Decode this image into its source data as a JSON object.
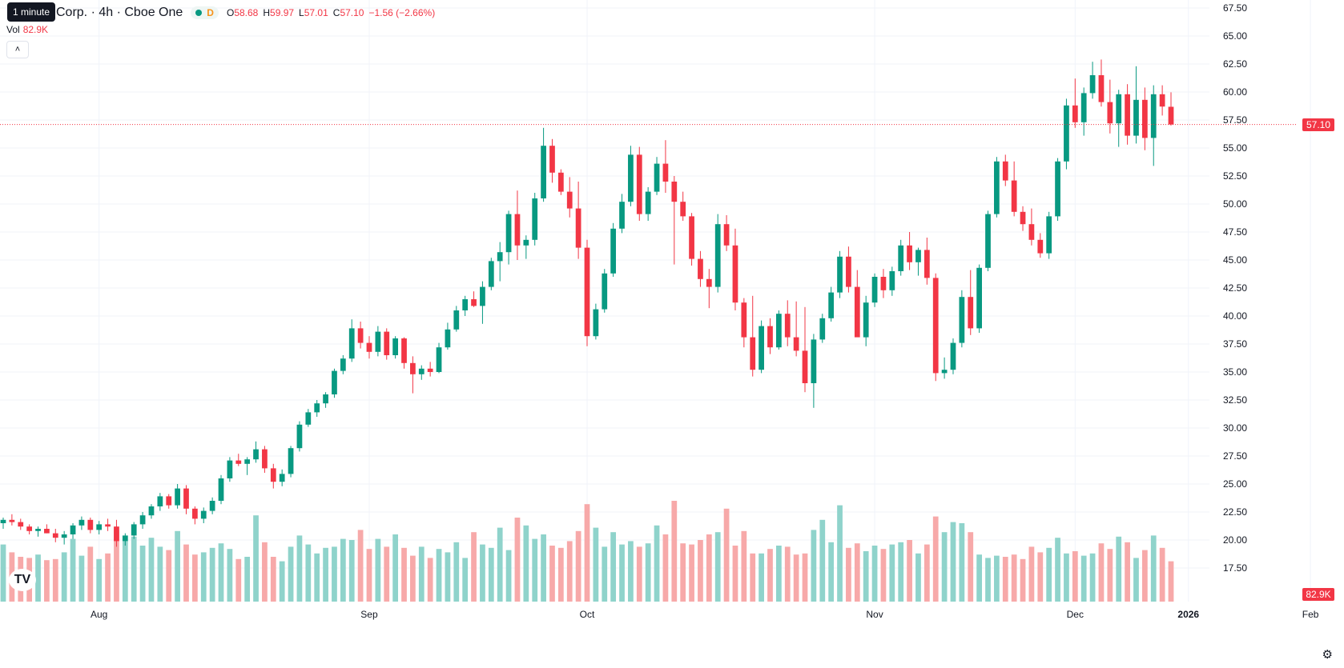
{
  "legend": {
    "symbol_name": "Corp. · 4h · Cboe One",
    "interval_letter": "D",
    "o_label": "O",
    "o_val": "58.68",
    "h_label": "H",
    "h_val": "59.97",
    "l_label": "L",
    "l_val": "57.01",
    "c_label": "C",
    "c_val": "57.10",
    "change": "−1.56 (−2.66%)",
    "tooltip": "1 minute"
  },
  "volume": {
    "label": "Vol",
    "value": "82.9K"
  },
  "price_axis": {
    "ticks": [
      "67.50",
      "65.00",
      "62.50",
      "60.00",
      "57.50",
      "55.00",
      "52.50",
      "50.00",
      "47.50",
      "45.00",
      "42.50",
      "40.00",
      "37.50",
      "35.00",
      "32.50",
      "30.00",
      "27.50",
      "25.00",
      "22.50",
      "20.00",
      "17.50"
    ],
    "last_price_label": "57.10",
    "volume_label": "82.9K"
  },
  "time_axis": [
    {
      "label": "Aug",
      "bold": false
    },
    {
      "label": "Sep",
      "bold": false
    },
    {
      "label": "Oct",
      "bold": false
    },
    {
      "label": "Nov",
      "bold": false
    },
    {
      "label": "Dec",
      "bold": false
    },
    {
      "label": "2026",
      "bold": true
    },
    {
      "label": "Feb",
      "bold": false
    }
  ],
  "icons": {
    "logo": "tradingview-logo-icon",
    "settings": "gear-icon",
    "collapse": "chevron-up-icon"
  },
  "colors": {
    "up": "#089981",
    "down": "#f23645",
    "up_vol": "#8fd3cb",
    "down_vol": "#f7a9a9"
  },
  "chart_data": {
    "type": "candlestick",
    "timeframe": "4h",
    "y_range": [
      17.5,
      67.5
    ],
    "last_close": 57.1,
    "grid": true,
    "x_ticks": [
      "Aug",
      "Sep",
      "Oct",
      "Nov",
      "Dec",
      "2026",
      "Feb"
    ],
    "candles": [
      [
        21.5,
        22.0,
        21.0,
        21.8
      ],
      [
        21.8,
        22.3,
        21.3,
        21.6
      ],
      [
        21.6,
        21.9,
        20.9,
        21.2
      ],
      [
        21.2,
        21.4,
        20.5,
        20.8
      ],
      [
        20.8,
        21.2,
        20.3,
        21.0
      ],
      [
        21.0,
        21.4,
        20.6,
        20.6
      ],
      [
        20.6,
        21.0,
        19.8,
        20.2
      ],
      [
        20.2,
        20.8,
        19.6,
        20.5
      ],
      [
        20.5,
        21.5,
        20.1,
        21.3
      ],
      [
        21.3,
        22.1,
        20.9,
        21.8
      ],
      [
        21.8,
        22.0,
        20.6,
        20.9
      ],
      [
        20.9,
        21.7,
        20.5,
        21.4
      ],
      [
        21.4,
        21.9,
        20.8,
        21.2
      ],
      [
        21.2,
        21.8,
        19.4,
        19.9
      ],
      [
        19.9,
        20.6,
        19.5,
        20.4
      ],
      [
        20.4,
        21.6,
        20.1,
        21.4
      ],
      [
        21.4,
        22.5,
        21.0,
        22.2
      ],
      [
        22.2,
        23.2,
        21.9,
        23.0
      ],
      [
        23.0,
        24.2,
        22.6,
        23.9
      ],
      [
        23.9,
        24.1,
        22.8,
        23.1
      ],
      [
        23.1,
        25.0,
        22.8,
        24.6
      ],
      [
        24.6,
        24.9,
        22.3,
        22.8
      ],
      [
        22.8,
        23.0,
        21.4,
        21.9
      ],
      [
        21.9,
        22.9,
        21.5,
        22.6
      ],
      [
        22.6,
        23.8,
        22.3,
        23.5
      ],
      [
        23.5,
        25.8,
        23.2,
        25.5
      ],
      [
        25.5,
        27.4,
        25.2,
        27.1
      ],
      [
        27.1,
        27.7,
        26.6,
        26.8
      ],
      [
        26.8,
        27.4,
        25.8,
        27.2
      ],
      [
        27.2,
        28.8,
        26.9,
        28.1
      ],
      [
        28.1,
        28.4,
        26.0,
        26.4
      ],
      [
        26.4,
        26.8,
        24.6,
        25.2
      ],
      [
        25.2,
        26.3,
        24.8,
        25.9
      ],
      [
        25.9,
        28.4,
        25.6,
        28.2
      ],
      [
        28.2,
        30.6,
        27.9,
        30.3
      ],
      [
        30.3,
        31.7,
        30.1,
        31.4
      ],
      [
        31.4,
        32.5,
        31.0,
        32.2
      ],
      [
        32.2,
        33.2,
        31.8,
        33.0
      ],
      [
        33.0,
        35.3,
        32.7,
        35.1
      ],
      [
        35.1,
        36.5,
        34.8,
        36.2
      ],
      [
        36.2,
        39.7,
        35.9,
        38.9
      ],
      [
        38.9,
        39.5,
        37.1,
        37.6
      ],
      [
        37.6,
        38.2,
        36.2,
        36.8
      ],
      [
        36.8,
        39.1,
        36.4,
        38.6
      ],
      [
        38.6,
        38.9,
        36.1,
        36.5
      ],
      [
        36.5,
        38.2,
        36.2,
        38.0
      ],
      [
        38.0,
        38.1,
        35.3,
        35.8
      ],
      [
        35.8,
        36.4,
        33.1,
        34.8
      ],
      [
        34.8,
        35.6,
        34.3,
        35.3
      ],
      [
        35.3,
        35.9,
        34.6,
        35.0
      ],
      [
        35.0,
        37.6,
        34.9,
        37.2
      ],
      [
        37.2,
        39.4,
        37.0,
        38.8
      ],
      [
        38.8,
        40.9,
        38.6,
        40.5
      ],
      [
        40.5,
        41.8,
        40.0,
        41.5
      ],
      [
        41.5,
        42.2,
        40.8,
        40.9
      ],
      [
        40.9,
        43.1,
        39.3,
        42.6
      ],
      [
        42.6,
        45.2,
        42.3,
        44.9
      ],
      [
        44.9,
        46.6,
        43.1,
        45.7
      ],
      [
        45.7,
        49.4,
        44.6,
        49.1
      ],
      [
        49.1,
        51.2,
        45.0,
        46.3
      ],
      [
        46.3,
        47.2,
        45.1,
        46.8
      ],
      [
        46.8,
        51.0,
        46.3,
        50.5
      ],
      [
        50.5,
        56.8,
        50.2,
        55.2
      ],
      [
        55.2,
        55.8,
        51.9,
        52.8
      ],
      [
        52.8,
        53.1,
        50.8,
        51.1
      ],
      [
        51.1,
        52.4,
        48.8,
        49.6
      ],
      [
        49.6,
        52.0,
        45.1,
        46.1
      ],
      [
        46.1,
        46.8,
        37.3,
        38.2
      ],
      [
        38.2,
        41.1,
        37.9,
        40.6
      ],
      [
        40.6,
        44.2,
        40.3,
        43.8
      ],
      [
        43.8,
        48.3,
        43.5,
        47.8
      ],
      [
        47.8,
        50.9,
        47.4,
        50.2
      ],
      [
        50.2,
        55.2,
        49.8,
        54.4
      ],
      [
        54.4,
        55.1,
        48.5,
        49.1
      ],
      [
        49.1,
        51.5,
        48.5,
        51.1
      ],
      [
        51.1,
        54.2,
        50.8,
        53.6
      ],
      [
        53.6,
        55.7,
        51.0,
        52.0
      ],
      [
        52.0,
        52.5,
        44.6,
        50.2
      ],
      [
        50.2,
        51.1,
        48.5,
        48.9
      ],
      [
        48.9,
        49.2,
        44.5,
        45.1
      ],
      [
        45.1,
        45.8,
        42.6,
        43.3
      ],
      [
        43.3,
        44.2,
        40.7,
        42.6
      ],
      [
        42.6,
        49.1,
        42.1,
        48.2
      ],
      [
        48.2,
        49.0,
        45.8,
        46.3
      ],
      [
        46.3,
        47.8,
        40.5,
        41.2
      ],
      [
        41.2,
        41.6,
        37.2,
        38.1
      ],
      [
        38.1,
        41.8,
        34.6,
        35.2
      ],
      [
        35.2,
        39.6,
        34.9,
        39.1
      ],
      [
        39.1,
        39.8,
        36.6,
        37.2
      ],
      [
        37.2,
        40.5,
        37.0,
        40.2
      ],
      [
        40.2,
        41.4,
        37.3,
        38.1
      ],
      [
        38.1,
        41.3,
        36.4,
        36.9
      ],
      [
        36.9,
        40.8,
        33.2,
        34.0
      ],
      [
        34.0,
        38.4,
        31.8,
        37.9
      ],
      [
        37.9,
        40.2,
        37.6,
        39.8
      ],
      [
        39.8,
        42.6,
        39.5,
        42.1
      ],
      [
        42.1,
        45.8,
        41.6,
        45.3
      ],
      [
        45.3,
        46.2,
        42.1,
        42.6
      ],
      [
        42.6,
        44.1,
        38.6,
        38.1
      ],
      [
        38.1,
        41.8,
        37.3,
        41.2
      ],
      [
        41.2,
        43.8,
        40.8,
        43.5
      ],
      [
        43.5,
        44.2,
        41.6,
        42.3
      ],
      [
        42.3,
        44.4,
        41.8,
        44.0
      ],
      [
        44.0,
        46.8,
        43.6,
        46.3
      ],
      [
        46.3,
        47.5,
        44.1,
        44.8
      ],
      [
        44.8,
        46.1,
        43.6,
        45.9
      ],
      [
        45.9,
        47.0,
        42.8,
        43.4
      ],
      [
        43.4,
        43.8,
        34.2,
        34.9
      ],
      [
        34.9,
        36.3,
        34.4,
        35.2
      ],
      [
        35.2,
        38.0,
        34.8,
        37.6
      ],
      [
        37.6,
        42.3,
        37.2,
        41.7
      ],
      [
        41.7,
        44.1,
        38.3,
        38.9
      ],
      [
        38.9,
        44.6,
        38.5,
        44.3
      ],
      [
        44.3,
        49.4,
        44.0,
        49.1
      ],
      [
        49.1,
        54.2,
        48.8,
        53.8
      ],
      [
        53.8,
        54.4,
        51.6,
        52.1
      ],
      [
        52.1,
        53.8,
        48.9,
        49.3
      ],
      [
        49.3,
        49.8,
        47.6,
        48.2
      ],
      [
        48.2,
        49.6,
        46.3,
        46.8
      ],
      [
        46.8,
        47.4,
        45.2,
        45.6
      ],
      [
        45.6,
        49.3,
        45.1,
        48.9
      ],
      [
        48.9,
        54.1,
        48.5,
        53.8
      ],
      [
        53.8,
        59.4,
        53.1,
        58.8
      ],
      [
        58.8,
        61.2,
        56.8,
        57.3
      ],
      [
        57.3,
        60.4,
        56.1,
        59.9
      ],
      [
        59.9,
        62.7,
        59.4,
        61.5
      ],
      [
        61.5,
        62.9,
        58.7,
        59.1
      ],
      [
        59.1,
        61.1,
        56.3,
        57.2
      ],
      [
        57.2,
        60.2,
        55.1,
        59.8
      ],
      [
        59.8,
        60.7,
        55.3,
        56.1
      ],
      [
        56.1,
        62.3,
        55.4,
        59.3
      ],
      [
        59.3,
        60.4,
        54.8,
        55.9
      ],
      [
        55.9,
        60.6,
        53.4,
        59.8
      ],
      [
        59.8,
        60.6,
        57.9,
        58.7
      ],
      [
        58.68,
        59.97,
        57.01,
        57.1
      ]
    ],
    "volume": [
      19.6,
      18.9,
      18.5,
      18.4,
      18.7,
      18.2,
      18.3,
      18.9,
      20.1,
      18.6,
      19.4,
      18.3,
      18.8,
      20.9,
      19.9,
      20.3,
      19.5,
      20.2,
      19.4,
      19.1,
      20.8,
      19.6,
      18.7,
      18.9,
      19.3,
      19.7,
      19.2,
      18.3,
      18.5,
      22.2,
      19.8,
      18.5,
      18.1,
      19.4,
      20.4,
      19.6,
      18.8,
      19.3,
      19.4,
      20.1,
      20.0,
      20.9,
      19.2,
      20.1,
      19.4,
      20.5,
      19.3,
      18.6,
      19.4,
      18.4,
      19.2,
      18.9,
      19.8,
      18.4,
      20.7,
      19.6,
      19.3,
      21.1,
      19.1,
      22.0,
      21.3,
      20.1,
      20.5,
      19.5,
      19.3,
      19.9,
      20.8,
      23.2,
      21.1,
      19.4,
      20.7,
      19.6,
      19.9,
      19.4,
      19.7,
      21.3,
      20.5,
      23.5,
      19.7,
      19.6,
      20.0,
      20.5,
      20.7,
      22.8,
      19.5,
      20.8,
      18.8,
      18.8,
      19.2,
      19.5,
      19.4,
      18.7,
      18.8,
      20.9,
      21.8,
      19.8,
      23.1,
      19.3,
      19.7,
      19.0,
      19.5,
      19.2,
      19.6,
      19.8,
      20.0,
      18.8,
      19.6,
      22.1,
      20.7,
      21.6,
      21.5,
      20.7,
      18.7,
      18.4,
      18.6,
      18.5,
      18.7,
      18.3,
      19.4,
      18.9,
      19.3,
      20.2,
      18.8,
      19.0,
      18.6,
      18.8,
      19.7,
      19.2,
      20.3,
      19.8,
      18.4,
      19.1,
      20.4,
      19.3,
      18.1
    ]
  }
}
